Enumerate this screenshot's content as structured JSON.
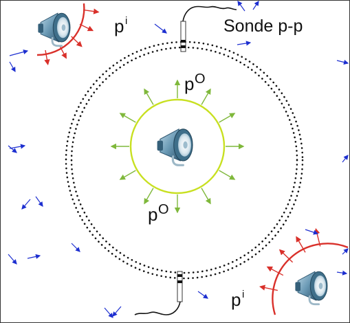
{
  "labels": {
    "probe": "Sonde p-p",
    "incoming": "p",
    "incoming_sup": "i",
    "outgoing": "p",
    "outgoing_sup": "O"
  },
  "colors": {
    "frame": "#333333",
    "incoming_wave": "#d9302a",
    "outgoing_wave": "#c8e021",
    "outgoing_arrow": "#7fb83b",
    "noise_arrow": "#1d2fd0",
    "microphone_circle": "#111111",
    "speaker_body": "#3f6f8a",
    "speaker_highlight": "#b8d4e3"
  },
  "icons": {
    "speaker": "loudspeaker-icon",
    "probe": "microphone-probe-icon"
  }
}
